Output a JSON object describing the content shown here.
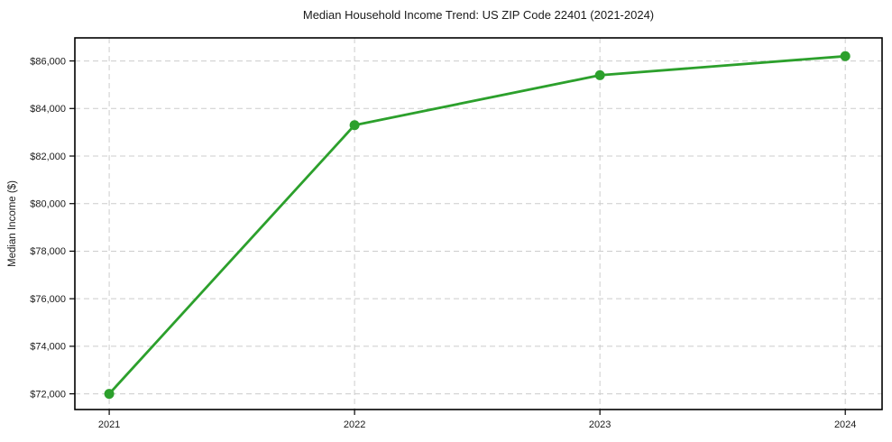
{
  "page": {
    "background": "#ffffff"
  },
  "chart_data": {
    "type": "line",
    "title": "Median Household Income Trend: US ZIP Code 22401 (2021-2024)",
    "xlabel": "",
    "ylabel": "Median Income ($)",
    "categories": [
      "2021",
      "2022",
      "2023",
      "2024"
    ],
    "x": [
      2021,
      2022,
      2023,
      2024
    ],
    "series": [
      {
        "name": "Median Household Income",
        "values": [
          72000,
          83300,
          85400,
          86200
        ]
      }
    ],
    "xlim": [
      2020.86,
      2024.15
    ],
    "ylim": [
      71340,
      86970
    ],
    "yticks": [
      72000,
      74000,
      76000,
      78000,
      80000,
      82000,
      84000,
      86000
    ],
    "ytick_labels": [
      "$72,000",
      "$74,000",
      "$76,000",
      "$78,000",
      "$80,000",
      "$82,000",
      "$84,000",
      "$86,000"
    ],
    "xtick_labels": [
      "2021",
      "2022",
      "2023",
      "2024"
    ],
    "grid": {
      "visible": true,
      "style": "dashed",
      "axes": "both",
      "color": "#cccccc"
    },
    "legend": {
      "visible": false
    },
    "line_color": "#2ca02c",
    "marker": {
      "shape": "circle",
      "color": "#2ca02c",
      "radius": 5.5
    },
    "spine_color": "#000000",
    "text_color": "#1a1a1a",
    "background": "#ffffff"
  }
}
